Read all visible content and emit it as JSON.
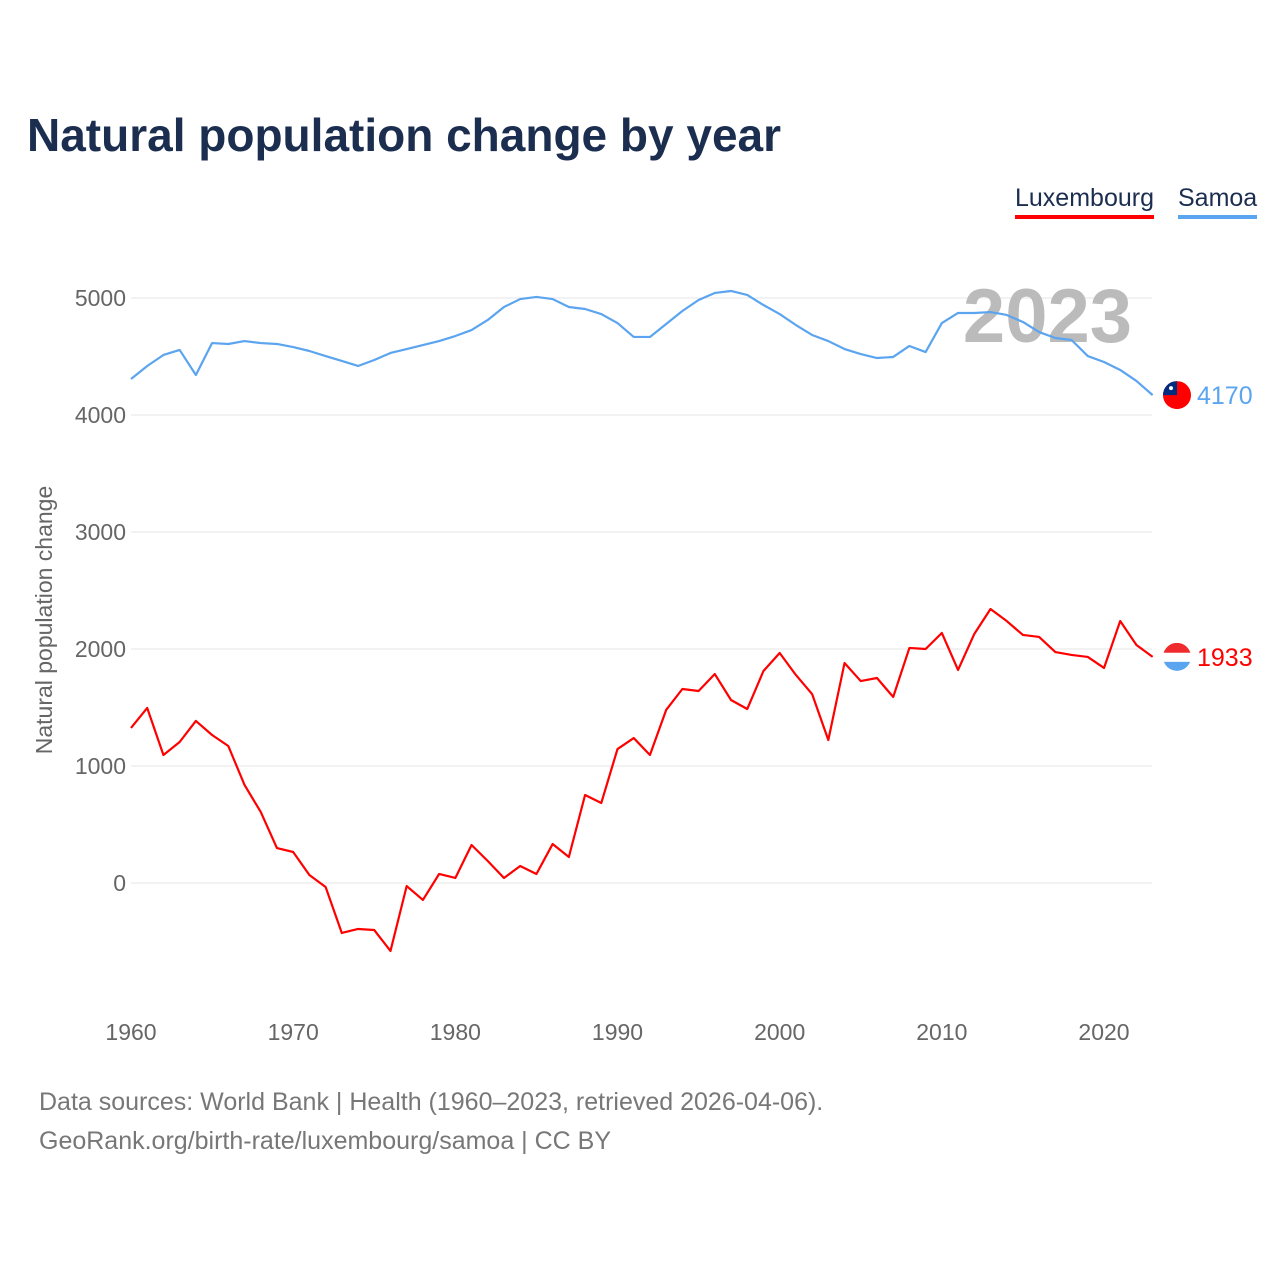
{
  "chart_data": {
    "type": "line",
    "title": "Natural population change by year",
    "xlabel": "",
    "ylabel": "Natural population change",
    "xlim": [
      1960,
      2023
    ],
    "ylim": [
      -1000,
      5500
    ],
    "x_ticks": [
      1960,
      1970,
      1980,
      1990,
      2000,
      2010,
      2020
    ],
    "y_ticks": [
      0,
      1000,
      2000,
      3000,
      4000,
      5000
    ],
    "grid": true,
    "legend_position": "top-right",
    "year_label": "2023",
    "x": [
      1960,
      1961,
      1962,
      1963,
      1964,
      1965,
      1966,
      1967,
      1968,
      1969,
      1970,
      1971,
      1972,
      1973,
      1974,
      1975,
      1976,
      1977,
      1978,
      1979,
      1980,
      1981,
      1982,
      1983,
      1984,
      1985,
      1986,
      1987,
      1988,
      1989,
      1990,
      1991,
      1992,
      1993,
      1994,
      1995,
      1996,
      1997,
      1998,
      1999,
      2000,
      2001,
      2002,
      2003,
      2004,
      2005,
      2006,
      2007,
      2008,
      2009,
      2010,
      2011,
      2012,
      2013,
      2014,
      2015,
      2016,
      2017,
      2018,
      2019,
      2020,
      2021,
      2022,
      2023
    ],
    "series": [
      {
        "name": "Luxembourg",
        "color": "#ff0000",
        "end_label": "1933",
        "values": [
          1325,
          1496,
          1094,
          1205,
          1385,
          1265,
          1171,
          838,
          607,
          299,
          265,
          68,
          -34,
          -427,
          -393,
          -402,
          -581,
          -26,
          -145,
          77,
          43,
          325,
          188,
          43,
          145,
          77,
          333,
          222,
          752,
          684,
          1145,
          1239,
          1094,
          1479,
          1658,
          1641,
          1786,
          1564,
          1487,
          1812,
          1966,
          1778,
          1615,
          1222,
          1880,
          1726,
          1752,
          1590,
          2009,
          2000,
          2137,
          1821,
          2128,
          2342,
          2239,
          2120,
          2103,
          1974,
          1949,
          1932,
          1838,
          2239,
          2034,
          1933
        ]
      },
      {
        "name": "Samoa",
        "color": "#5ba4ef",
        "end_label": "4170",
        "values": [
          4308,
          4419,
          4513,
          4556,
          4342,
          4615,
          4607,
          4632,
          4615,
          4607,
          4581,
          4547,
          4504,
          4462,
          4419,
          4470,
          4530,
          4564,
          4598,
          4632,
          4675,
          4726,
          4812,
          4923,
          4991,
          5009,
          4991,
          4923,
          4906,
          4863,
          4786,
          4667,
          4667,
          4778,
          4889,
          4983,
          5043,
          5060,
          5026,
          4940,
          4863,
          4769,
          4684,
          4632,
          4564,
          4521,
          4487,
          4496,
          4590,
          4538,
          4786,
          4872,
          4872,
          4880,
          4855,
          4795,
          4709,
          4658,
          4641,
          4504,
          4453,
          4385,
          4291,
          4170
        ]
      }
    ]
  },
  "footer": {
    "line1": "Data sources: World Bank | Health (1960–2023, retrieved 2026-04-06).",
    "line2": "GeoRank.org/birth-rate/luxembourg/samoa | CC BY"
  }
}
